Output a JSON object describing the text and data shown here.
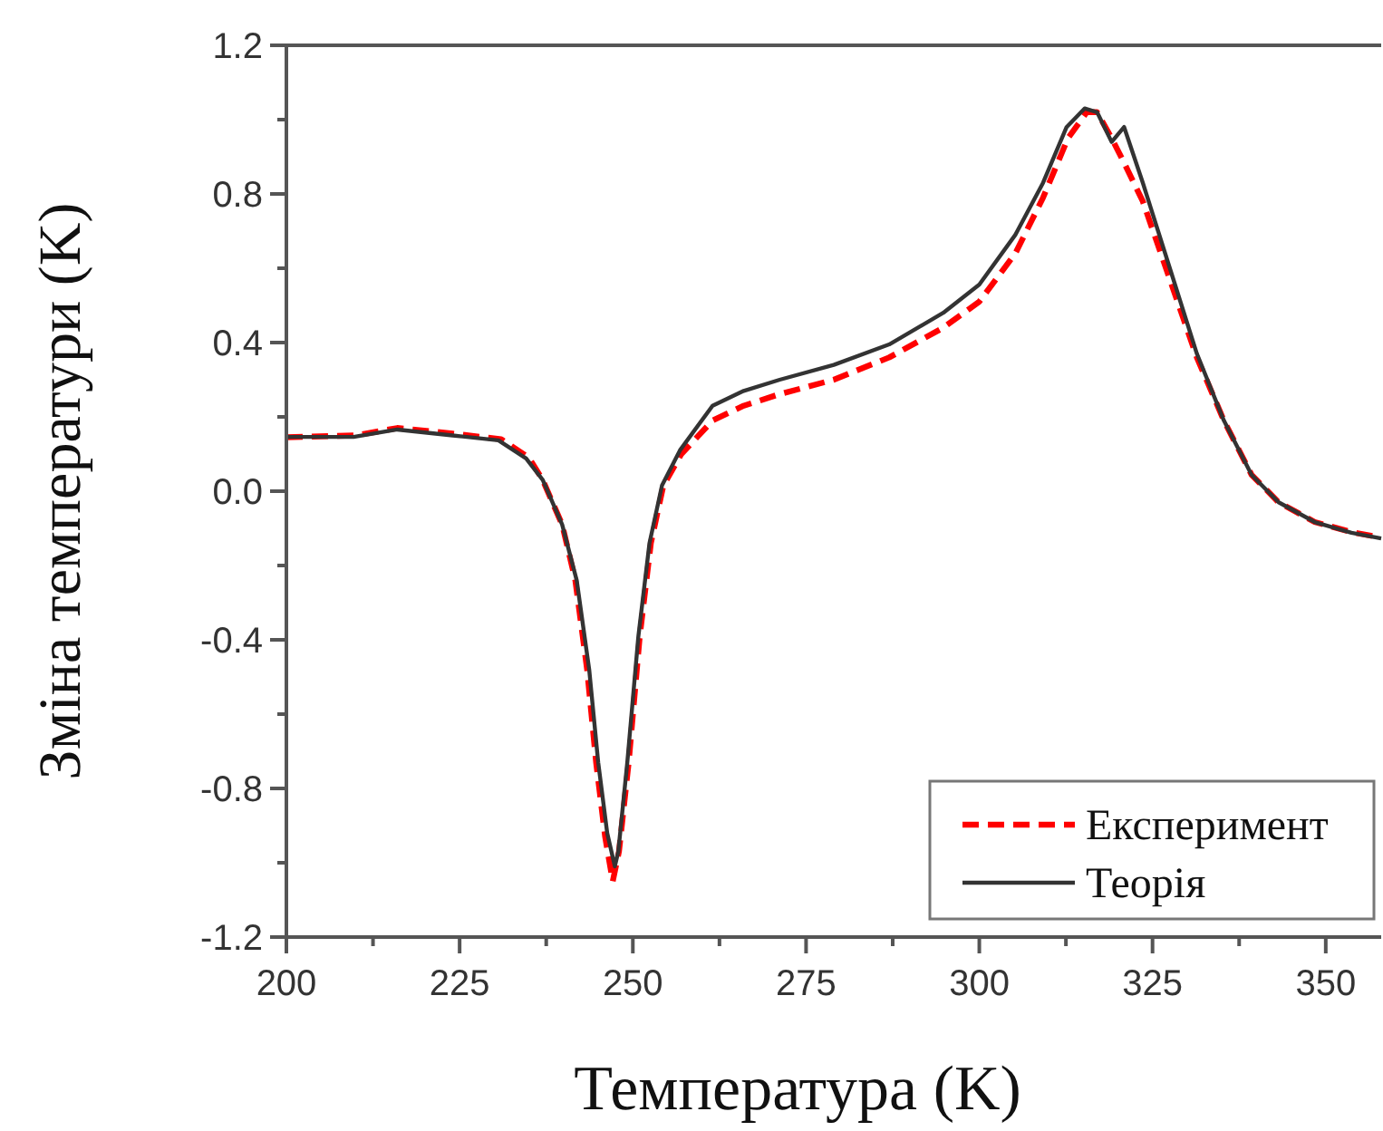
{
  "chart_data": {
    "type": "line",
    "xlabel": "Температура (K)",
    "ylabel": "Зміна температури (K)",
    "xlim": [
      200,
      358
    ],
    "ylim": [
      -1.2,
      1.2
    ],
    "xticks": [
      200,
      {
        "value": 212.5,
        "label": null
      },
      225,
      {
        "value": 237.5,
        "label": null
      },
      250,
      {
        "value": 262.5,
        "label": null
      },
      275,
      {
        "value": 287.5,
        "label": null
      },
      300,
      {
        "value": 312.5,
        "label": null
      },
      325,
      {
        "value": 337.5,
        "label": null
      },
      350
    ],
    "yticks": [
      -1.2,
      {
        "value": -1.0,
        "label": null
      },
      -0.8,
      {
        "value": -0.6,
        "label": null
      },
      -0.4,
      {
        "value": -0.2,
        "label": null
      },
      {
        "value": 0,
        "label": "0.0"
      },
      {
        "value": 0.2,
        "label": null
      },
      0.4,
      {
        "value": 0.6,
        "label": null
      },
      0.8,
      {
        "value": 1.0,
        "label": null
      },
      1.2
    ],
    "grid": false,
    "legend": "bottom right",
    "marker": "none",
    "series": [
      {
        "name": "Експеримент",
        "color": "#ff0000",
        "line_style": "dashed",
        "x": [
          200,
          210,
          216,
          224,
          231,
          235,
          237,
          239.8,
          241.7,
          243.4,
          244.7,
          246,
          247.1,
          248,
          249.4,
          251,
          252.6,
          254.4,
          257,
          261.5,
          266,
          271,
          279,
          287,
          294.8,
          300,
          305.2,
          309.2,
          312.8,
          315.5,
          317,
          319.1,
          321,
          323.6,
          327.5,
          331.4,
          335.3,
          339.3,
          343.2,
          348.4,
          353.7,
          358
        ],
        "values": [
          0.145,
          0.15,
          0.17,
          0.155,
          0.14,
          0.09,
          0.03,
          -0.09,
          -0.24,
          -0.48,
          -0.73,
          -0.93,
          -1.05,
          -0.97,
          -0.73,
          -0.39,
          -0.14,
          0.015,
          0.1,
          0.19,
          0.23,
          0.26,
          0.3,
          0.36,
          0.44,
          0.51,
          0.64,
          0.79,
          0.95,
          1.02,
          1.02,
          0.95,
          0.88,
          0.78,
          0.57,
          0.36,
          0.19,
          0.044,
          -0.03,
          -0.083,
          -0.11,
          -0.125
        ]
      },
      {
        "name": "Теорія",
        "color": "#333333",
        "line_style": "solid",
        "x": [
          200,
          209.7,
          216,
          224,
          230.6,
          234.6,
          237,
          239.8,
          241.9,
          243.7,
          245,
          246.3,
          247.4,
          247.9,
          249.2,
          250.8,
          252.4,
          254.2,
          256.8,
          261.5,
          266,
          271.2,
          279,
          287,
          294.8,
          300,
          305.2,
          309.2,
          312.6,
          315.2,
          317,
          319.1,
          320.9,
          323.6,
          327.5,
          331.4,
          335.3,
          339.3,
          343.2,
          348.4,
          353.7,
          358
        ],
        "values": [
          0.146,
          0.146,
          0.166,
          0.15,
          0.137,
          0.088,
          0.03,
          -0.09,
          -0.24,
          -0.48,
          -0.73,
          -0.92,
          -1.01,
          -0.97,
          -0.73,
          -0.39,
          -0.14,
          0.015,
          0.11,
          0.23,
          0.27,
          0.3,
          0.34,
          0.395,
          0.48,
          0.556,
          0.69,
          0.83,
          0.98,
          1.03,
          1.02,
          0.94,
          0.98,
          0.83,
          0.6,
          0.37,
          0.19,
          0.044,
          -0.03,
          -0.083,
          -0.112,
          -0.127
        ]
      }
    ]
  }
}
